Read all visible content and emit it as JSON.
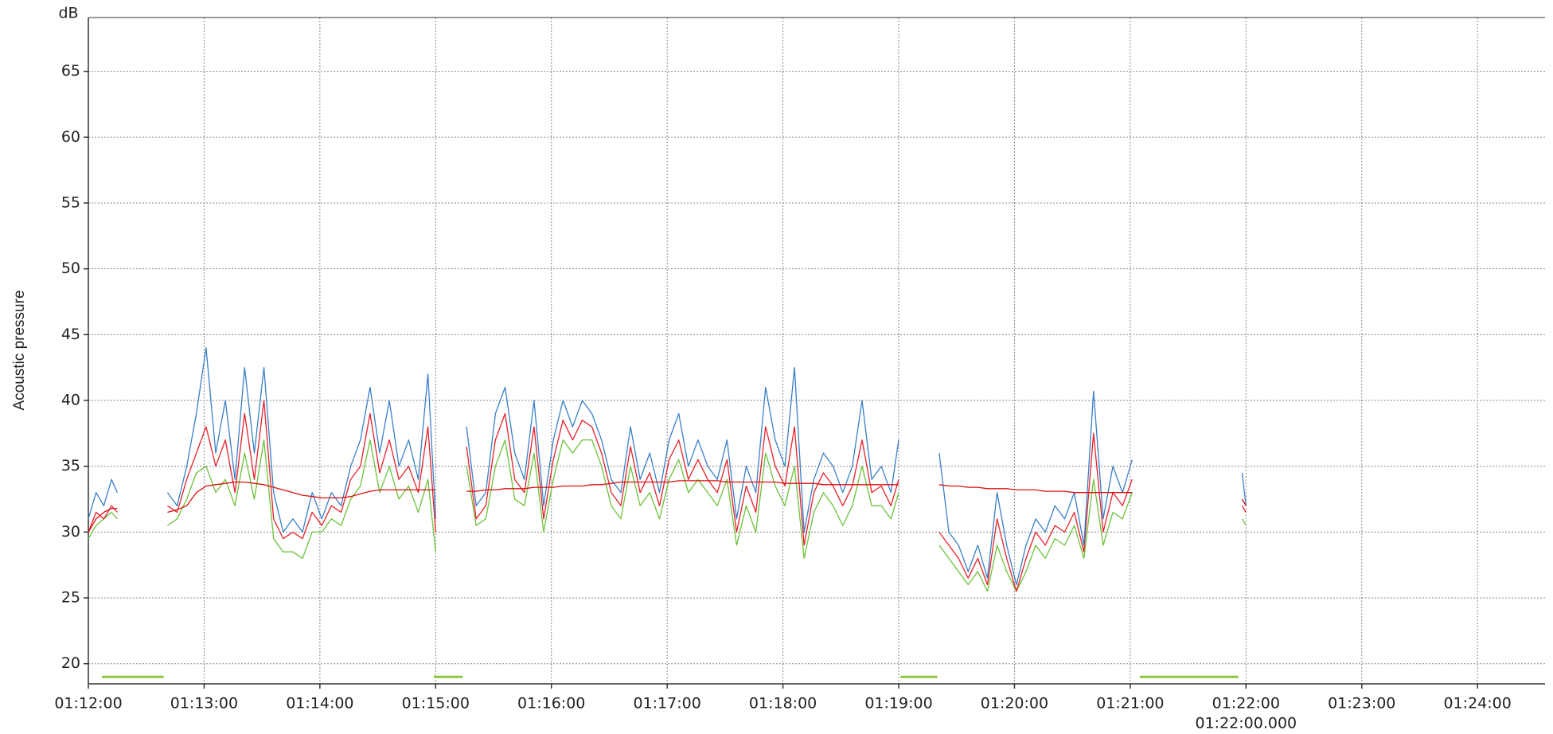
{
  "chart_data": {
    "type": "line",
    "y_unit": "dB",
    "ylabel": "Acoustic pressure",
    "xlim": [
      4320,
      5075
    ],
    "ylim": [
      18.47,
      69.09
    ],
    "grid": true,
    "xticks": [
      {
        "value": 4320,
        "label": "01:12:00"
      },
      {
        "value": 4380,
        "label": "01:13:00"
      },
      {
        "value": 4440,
        "label": "01:14:00"
      },
      {
        "value": 4500,
        "label": "01:15:00"
      },
      {
        "value": 4560,
        "label": "01:16:00"
      },
      {
        "value": 4620,
        "label": "01:17:00"
      },
      {
        "value": 4680,
        "label": "01:18:00"
      },
      {
        "value": 4740,
        "label": "01:19:00"
      },
      {
        "value": 4800,
        "label": "01:20:00"
      },
      {
        "value": 4860,
        "label": "01:21:00"
      },
      {
        "value": 4920,
        "label": "01:22:00"
      },
      {
        "value": 4980,
        "label": "01:23:00"
      },
      {
        "value": 5040,
        "label": "01:24:00"
      }
    ],
    "yticks": [
      20,
      25,
      30,
      35,
      40,
      45,
      50,
      55,
      60,
      65
    ],
    "cursor_label": {
      "value": 4920,
      "label": "01:22:00.000"
    },
    "x": [
      4320,
      4324,
      4328,
      4332,
      4335,
      4345,
      4361,
      4366,
      4371,
      4376,
      4381,
      4386,
      4391,
      4396,
      4401,
      4406,
      4411,
      4416,
      4421,
      4426,
      4431,
      4436,
      4441,
      4446,
      4451,
      4456,
      4461,
      4466,
      4471,
      4476,
      4481,
      4486,
      4491,
      4496,
      4500,
      4508,
      4516,
      4521,
      4526,
      4531,
      4536,
      4541,
      4546,
      4551,
      4556,
      4561,
      4566,
      4571,
      4576,
      4581,
      4586,
      4591,
      4596,
      4601,
      4606,
      4611,
      4616,
      4621,
      4626,
      4631,
      4636,
      4641,
      4646,
      4651,
      4656,
      4661,
      4666,
      4671,
      4676,
      4681,
      4686,
      4691,
      4696,
      4701,
      4706,
      4711,
      4716,
      4721,
      4726,
      4731,
      4736,
      4740,
      4750,
      4761,
      4766,
      4771,
      4776,
      4781,
      4786,
      4791,
      4796,
      4801,
      4806,
      4811,
      4816,
      4821,
      4826,
      4831,
      4836,
      4841,
      4846,
      4851,
      4856,
      4861,
      4890,
      4918,
      4920
    ],
    "series": [
      {
        "color": "#6cc23a",
        "values": [
          29.5,
          30.5,
          31,
          31.5,
          31,
          null,
          30.5,
          31,
          32.5,
          34.5,
          35,
          33,
          34,
          32,
          36,
          32.5,
          37,
          29.5,
          28.5,
          28.5,
          28,
          30,
          30,
          31,
          30.5,
          32.5,
          33.5,
          37,
          33,
          35,
          32.5,
          33.5,
          31.5,
          34,
          28.5,
          null,
          35,
          30.5,
          31,
          35,
          37,
          32.5,
          32,
          36,
          30,
          34,
          37,
          36,
          37,
          37,
          35,
          32,
          31,
          35,
          32,
          33,
          31,
          34,
          35.5,
          33,
          34,
          33,
          32,
          34,
          29,
          32,
          30,
          36,
          33.5,
          32,
          35,
          28,
          31.5,
          33,
          32,
          30.5,
          32,
          35,
          32,
          32,
          31,
          33,
          null,
          29,
          28,
          27,
          26,
          27,
          25.5,
          29,
          27,
          25.5,
          27,
          29,
          28,
          29.5,
          29,
          30.5,
          28,
          34,
          29,
          31.5,
          31,
          33,
          null,
          31,
          30.5
        ]
      },
      {
        "color": "#e8202a",
        "values": [
          30,
          31.5,
          31,
          32,
          31.5,
          null,
          32,
          31.5,
          34,
          36,
          38,
          35,
          37,
          33,
          39,
          34,
          40,
          31,
          29.5,
          30,
          29.5,
          31.5,
          30.5,
          32,
          31.5,
          34,
          35,
          39,
          34.5,
          37,
          34,
          35,
          33,
          38,
          30,
          null,
          36.5,
          31,
          32,
          37,
          39,
          34,
          33,
          38,
          31,
          35.5,
          38.5,
          37,
          38.5,
          38,
          36,
          33,
          32,
          36.5,
          33,
          34.5,
          32,
          35.5,
          37,
          34,
          35.5,
          34,
          33,
          35.5,
          30,
          33.5,
          31.5,
          38,
          35,
          33.5,
          38,
          29,
          33,
          34.5,
          33.5,
          32,
          33.5,
          37,
          33,
          33.5,
          32,
          34,
          null,
          30,
          29,
          28,
          26.5,
          28,
          26,
          31,
          28,
          25.5,
          28,
          30,
          29,
          30.5,
          30,
          31.5,
          28.5,
          37.5,
          30,
          33,
          32,
          34,
          null,
          32,
          31.5
        ]
      },
      {
        "color": "#3a7fc8",
        "values": [
          31,
          33,
          32,
          34,
          33,
          null,
          33,
          32,
          35,
          39,
          44,
          36,
          40,
          34,
          42.5,
          36,
          42.5,
          33,
          30,
          31,
          30,
          33,
          31,
          33,
          32,
          35,
          37,
          41,
          36,
          40,
          35,
          37,
          34,
          42,
          31,
          null,
          38,
          32,
          33,
          39,
          41,
          36,
          34,
          40,
          32,
          37,
          40,
          38,
          40,
          39,
          37,
          34,
          33,
          38,
          34,
          36,
          33,
          37,
          39,
          35,
          37,
          35,
          34,
          37,
          31,
          35,
          33,
          41,
          37,
          35,
          42.5,
          30,
          34,
          36,
          35,
          33,
          35,
          40,
          34,
          35,
          33,
          37,
          null,
          36,
          30,
          29,
          27,
          29,
          26.5,
          33,
          29,
          26,
          29,
          31,
          30,
          32,
          31,
          33,
          29,
          40.7,
          31,
          35,
          33,
          35.5,
          null,
          34.5,
          32
        ]
      },
      {
        "color": "#d81010",
        "values": [
          30,
          31,
          31.5,
          31.8,
          31.8,
          null,
          31.5,
          31.7,
          32,
          33,
          33.5,
          33.6,
          33.7,
          33.8,
          33.8,
          33.7,
          33.6,
          33.4,
          33.2,
          33,
          32.8,
          32.7,
          32.6,
          32.6,
          32.6,
          32.7,
          32.9,
          33.1,
          33.2,
          33.2,
          33.2,
          33.2,
          33.2,
          33.2,
          33.2,
          null,
          33.1,
          33.1,
          33.2,
          33.2,
          33.3,
          33.3,
          33.3,
          33.4,
          33.4,
          33.4,
          33.5,
          33.5,
          33.5,
          33.6,
          33.6,
          33.7,
          33.8,
          33.8,
          33.8,
          33.8,
          33.8,
          33.8,
          33.9,
          33.9,
          33.9,
          33.9,
          33.9,
          33.8,
          33.8,
          33.8,
          33.8,
          33.8,
          33.8,
          33.7,
          33.7,
          33.7,
          33.7,
          33.6,
          33.6,
          33.6,
          33.6,
          33.6,
          33.6,
          33.6,
          33.6,
          33.6,
          null,
          33.6,
          33.5,
          33.5,
          33.4,
          33.4,
          33.3,
          33.3,
          33.3,
          33.2,
          33.2,
          33.2,
          33.1,
          33.1,
          33.1,
          33.0,
          33.0,
          33.0,
          33.0,
          33.0,
          33.0,
          33.0,
          null,
          32.5,
          32
        ]
      },
      {
        "color": "#8cc63f",
        "width": 3,
        "x": [
          4327,
          4359,
          4360,
          4499,
          4514,
          4515,
          4741,
          4760,
          4761,
          4865,
          4916
        ],
        "values": [
          19,
          19,
          null,
          19,
          19,
          null,
          19,
          19,
          null,
          19,
          19
        ]
      }
    ]
  }
}
